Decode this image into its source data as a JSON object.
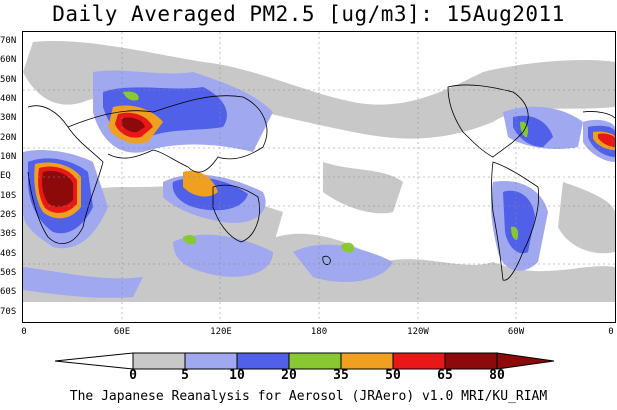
{
  "title": "Daily Averaged PM2.5 [ug/m3]: 15Aug2011",
  "lat_labels": [
    "70N",
    "60N",
    "50N",
    "40N",
    "30N",
    "20N",
    "10N",
    "EQ",
    "10S",
    "20S",
    "30S",
    "40S",
    "50S",
    "60S",
    "70S"
  ],
  "lon_labels": [
    "0",
    "60E",
    "120E",
    "180",
    "120W",
    "60W",
    "0"
  ],
  "colorbar": {
    "thresholds": [
      "0",
      "5",
      "10",
      "20",
      "35",
      "50",
      "65",
      "80"
    ],
    "colors": [
      "#ffffff",
      "#c8c8c8",
      "#a0a8f0",
      "#5060e8",
      "#88c832",
      "#f0a020",
      "#e81818",
      "#8c0a0a"
    ]
  },
  "footer": "The Japanese Reanalysis for Aerosol (JRAero) v1.0 MRI/KU_RIAM"
}
